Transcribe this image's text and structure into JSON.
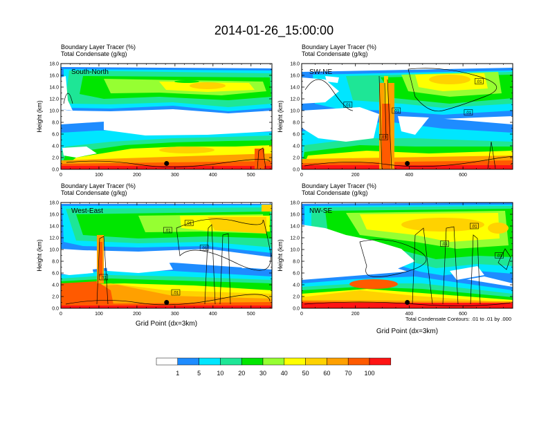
{
  "title": "2014-01-26_15:00:00",
  "panel_header": {
    "line1": "Boundary Layer Tracer   (%)",
    "line2": "Total Condensate   (g/kg)"
  },
  "ylabel": "Height (km)",
  "xlabel": "Grid Point (dx=3km)",
  "contour_note": "Total Condensate Contours: .01 to .01 by .000",
  "colorbar": {
    "levels": [
      "1",
      "5",
      "10",
      "20",
      "30",
      "40",
      "50",
      "60",
      "70",
      "100"
    ],
    "colors": [
      "#ffffff",
      "#1e8cff",
      "#00e6ff",
      "#1ee696",
      "#00e600",
      "#96ff32",
      "#ffff00",
      "#ffd200",
      "#ffa000",
      "#ff5a00",
      "#ff1414"
    ]
  },
  "chart_data": [
    {
      "type": "heatmap",
      "name": "South-North",
      "ylim": [
        0,
        18
      ],
      "xlim": [
        0,
        555
      ],
      "yticks": [
        "0.0",
        "2.0",
        "4.0",
        "6.0",
        "8.0",
        "10.0",
        "12.0",
        "14.0",
        "16.0",
        "18.0"
      ],
      "xticks": [
        {
          "v": 0,
          "label": "0"
        },
        {
          "v": 100,
          "label": "100"
        },
        {
          "v": 200,
          "label": "200"
        },
        {
          "v": 300,
          "label": "300"
        },
        {
          "v": 400,
          "label": "400"
        },
        {
          "v": 500,
          "label": "500"
        }
      ],
      "marker": [
        278,
        1.0
      ],
      "contour_labels": []
    },
    {
      "type": "heatmap",
      "name": "SW-NE",
      "ylim": [
        0,
        18
      ],
      "xlim": [
        0,
        785
      ],
      "yticks": [
        "0.0",
        "2.0",
        "4.0",
        "6.0",
        "8.0",
        "10.0",
        "12.0",
        "14.0",
        "16.0",
        "18.0"
      ],
      "xticks": [
        {
          "v": 0,
          "label": "0"
        },
        {
          "v": 200,
          "label": "200"
        },
        {
          "v": 400,
          "label": "400"
        },
        {
          "v": 600,
          "label": "600"
        }
      ],
      "marker": [
        393,
        1.0
      ],
      "contour_labels": [
        {
          "x": 660,
          "y": 15.0,
          "t": ".01"
        },
        {
          "x": 172,
          "y": 11.0,
          "t": ".01"
        },
        {
          "x": 352,
          "y": 10.0,
          "t": ".01"
        },
        {
          "x": 620,
          "y": 9.7,
          "t": ".01"
        },
        {
          "x": 305,
          "y": 5.5,
          "t": ".01"
        }
      ]
    },
    {
      "type": "heatmap",
      "name": "West-East",
      "ylim": [
        0,
        18
      ],
      "xlim": [
        0,
        555
      ],
      "yticks": [
        "0.0",
        "2.0",
        "4.0",
        "6.0",
        "8.0",
        "10.0",
        "12.0",
        "14.0",
        "16.0",
        "18.0"
      ],
      "xticks": [
        {
          "v": 0,
          "label": "0"
        },
        {
          "v": 100,
          "label": "100"
        },
        {
          "v": 200,
          "label": "200"
        },
        {
          "v": 300,
          "label": "300"
        },
        {
          "v": 400,
          "label": "400"
        },
        {
          "v": 500,
          "label": "500"
        }
      ],
      "marker": [
        278,
        1.0
      ],
      "contour_labels": [
        {
          "x": 337,
          "y": 14.5,
          "t": ".01"
        },
        {
          "x": 281,
          "y": 13.3,
          "t": ".01"
        },
        {
          "x": 377,
          "y": 10.3,
          "t": ".01"
        },
        {
          "x": 112,
          "y": 5.3,
          "t": ".01"
        },
        {
          "x": 302,
          "y": 2.7,
          "t": ".01"
        }
      ]
    },
    {
      "type": "heatmap",
      "name": "NW-SE",
      "ylim": [
        0,
        18
      ],
      "xlim": [
        0,
        785
      ],
      "yticks": [
        "0.0",
        "2.0",
        "4.0",
        "6.0",
        "8.0",
        "10.0",
        "12.0",
        "14.0",
        "16.0",
        "18.0"
      ],
      "xticks": [
        {
          "v": 0,
          "label": "0"
        },
        {
          "v": 200,
          "label": "200"
        },
        {
          "v": 400,
          "label": "400"
        },
        {
          "v": 600,
          "label": "600"
        }
      ],
      "marker": [
        393,
        1.0
      ],
      "contour_labels": [
        {
          "x": 642,
          "y": 14.0,
          "t": ".01"
        },
        {
          "x": 532,
          "y": 11.0,
          "t": ".01"
        },
        {
          "x": 735,
          "y": 9.0,
          "t": ".01"
        }
      ]
    }
  ]
}
